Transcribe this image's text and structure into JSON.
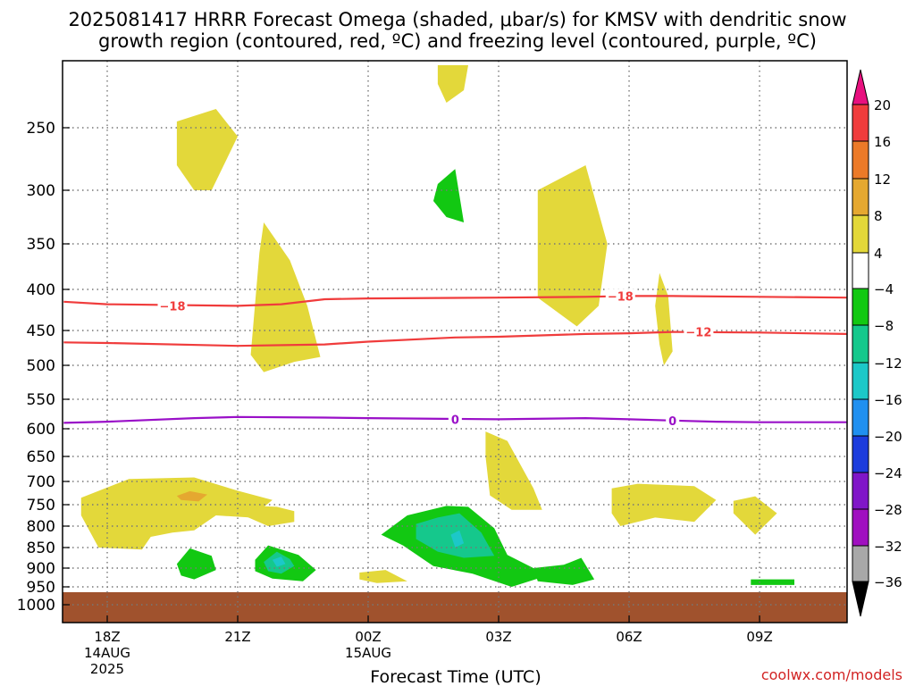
{
  "chart_data": {
    "type": "heatmap",
    "title_line1": "2025081417 HRRR Forecast Omega (shaded, μbar/s) for KMSV with dendritic snow",
    "title_line2": "growth region (contoured, red, ºC) and freezing level (contoured, purple, ºC)",
    "xlabel": "Forecast Time (UTC)",
    "credit": "coolwx.com/models",
    "y_ticks": [
      "250",
      "300",
      "350",
      "400",
      "450",
      "500",
      "550",
      "600",
      "650",
      "700",
      "750",
      "800",
      "850",
      "900",
      "950",
      "1000"
    ],
    "y_tick_values": [
      250,
      300,
      350,
      400,
      450,
      500,
      550,
      600,
      650,
      700,
      750,
      800,
      850,
      900,
      950,
      1000
    ],
    "x_ticks": [
      {
        "label": "18Z",
        "sub1": "14AUG",
        "sub2": "2025",
        "hour": 0
      },
      {
        "label": "21Z",
        "sub1": "",
        "sub2": "",
        "hour": 3
      },
      {
        "label": "00Z",
        "sub1": "15AUG",
        "sub2": "",
        "hour": 6
      },
      {
        "label": "03Z",
        "sub1": "",
        "sub2": "",
        "hour": 9
      },
      {
        "label": "06Z",
        "sub1": "",
        "sub2": "",
        "hour": 12
      },
      {
        "label": "09Z",
        "sub1": "",
        "sub2": "",
        "hour": 15
      }
    ],
    "colorbar": {
      "labels": [
        "20",
        "16",
        "12",
        "8",
        "4",
        "−4",
        "−8",
        "−12",
        "−16",
        "−20",
        "−24",
        "−28",
        "−32",
        "−36"
      ],
      "colors": [
        "#e8107f",
        "#f03c3c",
        "#ec7a28",
        "#e5a830",
        "#e3d83a",
        "#ffffff",
        "#12c812",
        "#15c88c",
        "#1cc8c8",
        "#2090f0",
        "#1c3cdc",
        "#8016c8",
        "#a010c0",
        "#a8a8a8",
        "#000000"
      ]
    },
    "contours": [
      {
        "label": "−18",
        "color": "#f03c3c",
        "points": [
          [
            -1,
            415
          ],
          [
            0,
            418
          ],
          [
            3,
            420
          ],
          [
            4,
            418
          ],
          [
            5,
            412
          ],
          [
            6,
            411
          ],
          [
            9,
            410
          ],
          [
            11,
            409
          ],
          [
            12,
            408
          ],
          [
            13,
            408
          ],
          [
            15,
            409
          ],
          [
            17,
            410
          ]
        ]
      },
      {
        "label": "−12",
        "color": "#f03c3c",
        "points": [
          [
            -1,
            467
          ],
          [
            0,
            468
          ],
          [
            3,
            472
          ],
          [
            5,
            470
          ],
          [
            6,
            466
          ],
          [
            8,
            460
          ],
          [
            9,
            459
          ],
          [
            11,
            455
          ],
          [
            12,
            454
          ],
          [
            13,
            452
          ],
          [
            15,
            453
          ],
          [
            17,
            455
          ]
        ]
      },
      {
        "label": "0",
        "color": "#9a10c8",
        "points": [
          [
            -1,
            590
          ],
          [
            0,
            588
          ],
          [
            2,
            582
          ],
          [
            3,
            580
          ],
          [
            5,
            581
          ],
          [
            6,
            582
          ],
          [
            9,
            584
          ],
          [
            11,
            582
          ],
          [
            12,
            584
          ],
          [
            13,
            586
          ],
          [
            14,
            588
          ],
          [
            15,
            589
          ],
          [
            17,
            589
          ]
        ]
      }
    ],
    "contour_labels": [
      {
        "text": "−18",
        "color": "#f03c3c",
        "x": 1.5,
        "y": 420
      },
      {
        "text": "−18",
        "color": "#f03c3c",
        "x": 11.8,
        "y": 408
      },
      {
        "text": "−12",
        "color": "#f03c3c",
        "x": 13.6,
        "y": 452
      },
      {
        "text": "0",
        "color": "#9a10c8",
        "x": 8,
        "y": 584
      },
      {
        "text": "0",
        "color": "#9a10c8",
        "x": 13,
        "y": 586
      }
    ],
    "omega_regions": [
      {
        "value": "4 to 8",
        "color": "#e3d83a",
        "points": [
          [
            1.6,
            245
          ],
          [
            2.5,
            235
          ],
          [
            3.0,
            257
          ],
          [
            2.4,
            300
          ],
          [
            2.0,
            300
          ],
          [
            1.6,
            280
          ]
        ]
      },
      {
        "value": "4 to 8",
        "color": "#e3d83a",
        "points": [
          [
            7.6,
            200
          ],
          [
            8.3,
            200
          ],
          [
            8.2,
            220
          ],
          [
            7.8,
            230
          ],
          [
            7.6,
            215
          ]
        ]
      },
      {
        "value": "4 to 8",
        "color": "#e3d83a",
        "points": [
          [
            3.6,
            330
          ],
          [
            4.2,
            368
          ],
          [
            4.6,
            420
          ],
          [
            4.9,
            488
          ],
          [
            4.3,
            495
          ],
          [
            3.6,
            510
          ],
          [
            3.3,
            485
          ],
          [
            3.5,
            360
          ]
        ]
      },
      {
        "value": "4 to 8",
        "color": "#e3d83a",
        "points": [
          [
            9.9,
            300
          ],
          [
            11.0,
            280
          ],
          [
            11.5,
            350
          ],
          [
            11.3,
            420
          ],
          [
            10.8,
            445
          ],
          [
            9.9,
            410
          ]
        ]
      },
      {
        "value": "4 to 8",
        "color": "#e3d83a",
        "points": [
          [
            12.7,
            382
          ],
          [
            12.9,
            408
          ],
          [
            13.0,
            480
          ],
          [
            12.8,
            500
          ],
          [
            12.7,
            470
          ],
          [
            12.6,
            420
          ]
        ]
      },
      {
        "value": "4 to 8",
        "color": "#e3d83a",
        "points": [
          [
            -0.6,
            735
          ],
          [
            0.5,
            695
          ],
          [
            2.0,
            692
          ],
          [
            3.0,
            720
          ],
          [
            3.8,
            740
          ],
          [
            3.3,
            780
          ],
          [
            2.5,
            775
          ],
          [
            2.0,
            810
          ],
          [
            1.5,
            815
          ],
          [
            1.0,
            825
          ],
          [
            0.8,
            855
          ],
          [
            -0.2,
            850
          ],
          [
            -0.6,
            775
          ]
        ]
      },
      {
        "value": "4 to 8",
        "color": "#e3d83a",
        "points": [
          [
            3.2,
            752
          ],
          [
            3.9,
            755
          ],
          [
            4.3,
            765
          ],
          [
            4.3,
            790
          ],
          [
            3.7,
            800
          ],
          [
            3.2,
            778
          ]
        ]
      },
      {
        "value": "4 to 8",
        "color": "#e3d83a",
        "points": [
          [
            8.7,
            605
          ],
          [
            9.2,
            622
          ],
          [
            9.8,
            715
          ],
          [
            10.0,
            762
          ],
          [
            9.3,
            762
          ],
          [
            8.8,
            730
          ],
          [
            8.7,
            650
          ]
        ]
      },
      {
        "value": "4 to 8",
        "color": "#e3d83a",
        "points": [
          [
            11.6,
            715
          ],
          [
            12.2,
            705
          ],
          [
            13.5,
            710
          ],
          [
            14.0,
            740
          ],
          [
            13.5,
            790
          ],
          [
            12.6,
            780
          ],
          [
            11.8,
            800
          ],
          [
            11.6,
            770
          ]
        ]
      },
      {
        "value": "4 to 8",
        "color": "#e3d83a",
        "points": [
          [
            14.4,
            742
          ],
          [
            14.9,
            732
          ],
          [
            15.4,
            770
          ],
          [
            14.9,
            820
          ],
          [
            14.6,
            790
          ],
          [
            14.4,
            770
          ]
        ]
      },
      {
        "value": "4 to 8",
        "color": "#e3d83a",
        "points": [
          [
            5.8,
            912
          ],
          [
            6.4,
            905
          ],
          [
            6.9,
            935
          ],
          [
            6.2,
            940
          ],
          [
            5.8,
            930
          ]
        ]
      },
      {
        "value": "8 to 12",
        "color": "#e5a830",
        "points": [
          [
            1.6,
            731
          ],
          [
            1.9,
            721
          ],
          [
            2.3,
            728
          ],
          [
            2.1,
            743
          ],
          [
            1.7,
            740
          ]
        ]
      },
      {
        "value": "−4 to −8",
        "color": "#12c812",
        "points": [
          [
            7.6,
            295
          ],
          [
            8.0,
            283
          ],
          [
            8.2,
            330
          ],
          [
            7.8,
            325
          ],
          [
            7.5,
            310
          ]
        ]
      },
      {
        "value": "−4 to −8",
        "color": "#12c812",
        "points": [
          [
            1.6,
            890
          ],
          [
            1.9,
            852
          ],
          [
            2.4,
            870
          ],
          [
            2.5,
            905
          ],
          [
            2.0,
            930
          ],
          [
            1.7,
            920
          ]
        ]
      },
      {
        "value": "−4 to −8",
        "color": "#12c812",
        "points": [
          [
            3.4,
            880
          ],
          [
            3.7,
            845
          ],
          [
            4.4,
            868
          ],
          [
            4.8,
            905
          ],
          [
            4.5,
            935
          ],
          [
            3.8,
            928
          ],
          [
            3.4,
            908
          ]
        ]
      },
      {
        "value": "−4 to −8",
        "color": "#12c812",
        "points": [
          [
            6.3,
            820
          ],
          [
            6.9,
            775
          ],
          [
            7.8,
            753
          ],
          [
            8.3,
            755
          ],
          [
            8.9,
            805
          ],
          [
            9.2,
            868
          ],
          [
            9.8,
            900
          ],
          [
            9.9,
            928
          ],
          [
            9.3,
            950
          ],
          [
            8.4,
            915
          ],
          [
            7.5,
            895
          ],
          [
            6.8,
            845
          ]
        ]
      },
      {
        "value": "−4 to −8",
        "color": "#12c812",
        "points": [
          [
            9.8,
            900
          ],
          [
            10.5,
            892
          ],
          [
            10.9,
            875
          ],
          [
            11.2,
            930
          ],
          [
            10.7,
            945
          ],
          [
            9.9,
            935
          ]
        ]
      },
      {
        "value": "−4 to −8",
        "color": "#12c812",
        "points": [
          [
            14.8,
            930
          ],
          [
            15.8,
            930
          ],
          [
            15.8,
            945
          ],
          [
            14.8,
            945
          ]
        ]
      },
      {
        "value": "−8 to −12",
        "color": "#15c88c",
        "points": [
          [
            3.6,
            885
          ],
          [
            3.9,
            860
          ],
          [
            4.2,
            878
          ],
          [
            4.3,
            895
          ],
          [
            4.0,
            915
          ],
          [
            3.7,
            908
          ]
        ]
      },
      {
        "value": "−8 to −12",
        "color": "#15c88c",
        "points": [
          [
            7.1,
            795
          ],
          [
            7.6,
            780
          ],
          [
            8.1,
            770
          ],
          [
            8.6,
            815
          ],
          [
            8.9,
            870
          ],
          [
            8.2,
            875
          ],
          [
            7.6,
            860
          ],
          [
            7.1,
            830
          ]
        ]
      },
      {
        "value": "−12 to −16",
        "color": "#1cc8c8",
        "points": [
          [
            7.9,
            820
          ],
          [
            8.1,
            810
          ],
          [
            8.2,
            840
          ],
          [
            8.0,
            850
          ]
        ]
      },
      {
        "value": "−12 to −16",
        "color": "#1cc8c8",
        "points": [
          [
            3.8,
            880
          ],
          [
            4.0,
            872
          ],
          [
            4.1,
            890
          ],
          [
            3.9,
            897
          ]
        ]
      }
    ],
    "ground": {
      "color": "#a0522d"
    },
    "ylim": [
      200,
      1050
    ],
    "xlim": [
      -1,
      17
    ]
  }
}
